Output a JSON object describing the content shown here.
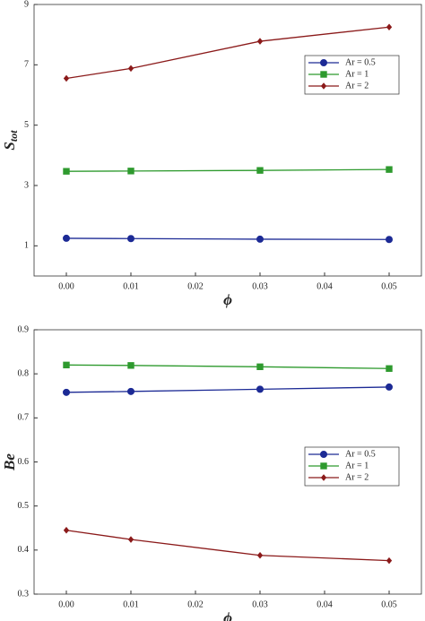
{
  "chart_data": [
    {
      "type": "line",
      "ylabel": "S",
      "ylabel_subscript": "tot",
      "xlabel": "ϕ",
      "x": [
        0,
        0.01,
        0.03,
        0.05
      ],
      "xlim": [
        -0.005,
        0.055
      ],
      "xticks": [
        {
          "value": 0,
          "label": "0.00"
        },
        {
          "value": 0.01,
          "label": "0.01"
        },
        {
          "value": 0.02,
          "label": "0.02"
        },
        {
          "value": 0.03,
          "label": "0.03"
        },
        {
          "value": 0.04,
          "label": "0.04"
        },
        {
          "value": 0.05,
          "label": "0.05"
        }
      ],
      "ylim": [
        0,
        9
      ],
      "yticks": [
        1,
        3,
        5,
        7,
        9
      ],
      "legend": "upper right",
      "series": [
        {
          "name": "Ar = 0.5",
          "color": "#1c2a95",
          "marker": "circle",
          "values": [
            1.25,
            1.24,
            1.22,
            1.21
          ]
        },
        {
          "name": "Ar = 1",
          "color": "#2e9a2e",
          "marker": "square",
          "values": [
            3.47,
            3.48,
            3.5,
            3.53
          ]
        },
        {
          "name": "Ar = 2",
          "color": "#8b1a1a",
          "marker": "diamond",
          "values": [
            6.55,
            6.88,
            7.78,
            8.25
          ]
        }
      ]
    },
    {
      "type": "line",
      "ylabel": "Be",
      "xlabel": "ϕ",
      "x": [
        0,
        0.01,
        0.03,
        0.05
      ],
      "xlim": [
        -0.005,
        0.055
      ],
      "xticks": [
        {
          "value": 0,
          "label": "0.00"
        },
        {
          "value": 0.01,
          "label": "0.01"
        },
        {
          "value": 0.02,
          "label": "0.02"
        },
        {
          "value": 0.03,
          "label": "0.03"
        },
        {
          "value": 0.04,
          "label": "0.04"
        },
        {
          "value": 0.05,
          "label": "0.05"
        }
      ],
      "ylim": [
        0.3,
        0.9
      ],
      "yticks": [
        0.3,
        0.4,
        0.5,
        0.6,
        0.7,
        0.8,
        0.9
      ],
      "legend": "center right",
      "series": [
        {
          "name": "Ar = 0.5",
          "color": "#1c2a95",
          "marker": "circle",
          "values": [
            0.758,
            0.76,
            0.765,
            0.77
          ]
        },
        {
          "name": "Ar = 1",
          "color": "#2e9a2e",
          "marker": "square",
          "values": [
            0.82,
            0.819,
            0.816,
            0.812
          ]
        },
        {
          "name": "Ar = 2",
          "color": "#8b1a1a",
          "marker": "diamond",
          "values": [
            0.445,
            0.424,
            0.388,
            0.376
          ]
        }
      ]
    }
  ]
}
